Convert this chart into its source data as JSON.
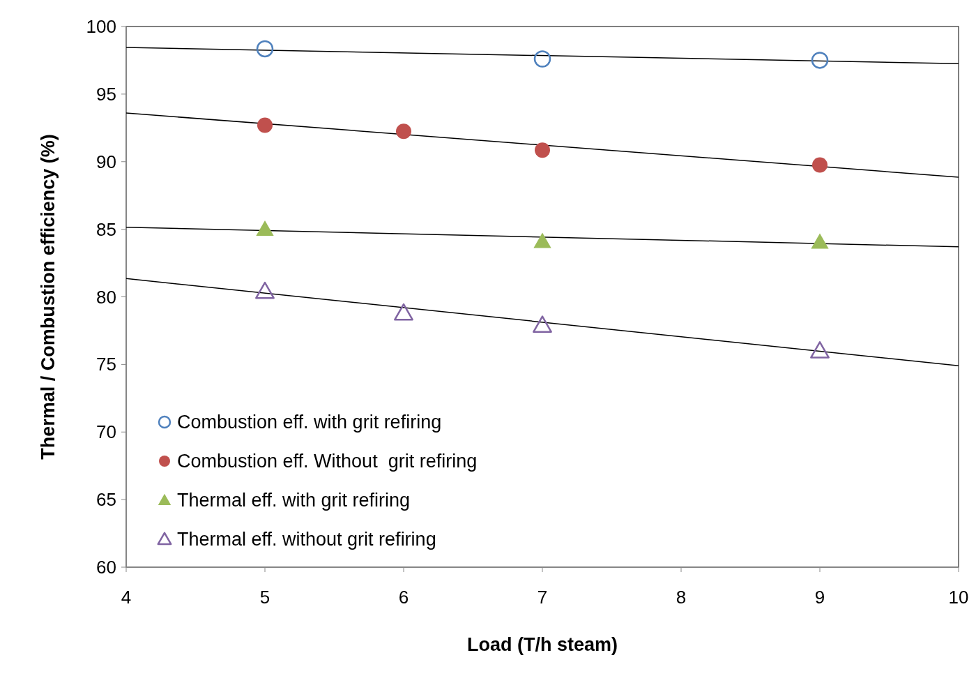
{
  "chart_data": {
    "type": "scatter",
    "xlabel": "Load (T/h steam)",
    "ylabel": "Thermal / Combustion efficiency (%)",
    "xlim": [
      4,
      10
    ],
    "xticks": [
      4,
      5,
      6,
      7,
      8,
      9,
      10
    ],
    "ylim": [
      60,
      100
    ],
    "yticks": [
      60,
      65,
      70,
      75,
      80,
      85,
      90,
      95,
      100
    ],
    "grid": false,
    "legend": "bottom left",
    "series": [
      {
        "name": "Combustion eff. with grit refiring",
        "color": "#4f81bd",
        "marker": "circle",
        "x": [
          5,
          7,
          9
        ],
        "values": [
          98.35,
          97.6,
          97.5
        ]
      },
      {
        "name": "Combustion eff. Without  grit refiring",
        "color": "#c0504d",
        "marker": "circle",
        "x": [
          5,
          6,
          7,
          9
        ],
        "values": [
          92.7,
          92.25,
          90.85,
          89.75
        ]
      },
      {
        "name": "Thermal eff. with grit refiring",
        "color": "#9bbb59",
        "marker": "triangle",
        "x": [
          5,
          7,
          9
        ],
        "values": [
          85.0,
          84.1,
          84.05
        ]
      },
      {
        "name": "Thermal eff. without grit refiring",
        "color": "#8064a2",
        "marker": "triangle",
        "x": [
          5,
          6,
          7,
          9
        ],
        "values": [
          80.4,
          78.8,
          77.9,
          76.0
        ]
      },
      {
        "type": "line",
        "color": "#000000",
        "marker": "none",
        "x": [
          4,
          10
        ],
        "values": [
          98.45,
          97.25
        ]
      },
      {
        "type": "line",
        "color": "#000000",
        "marker": "none",
        "x": [
          4,
          10
        ],
        "values": [
          93.6,
          88.85
        ]
      },
      {
        "type": "line",
        "color": "#000000",
        "marker": "none",
        "x": [
          4,
          10
        ],
        "values": [
          85.15,
          83.7
        ]
      },
      {
        "type": "line",
        "color": "#000000",
        "marker": "none",
        "x": [
          4,
          10
        ],
        "values": [
          81.35,
          74.9
        ]
      }
    ]
  }
}
